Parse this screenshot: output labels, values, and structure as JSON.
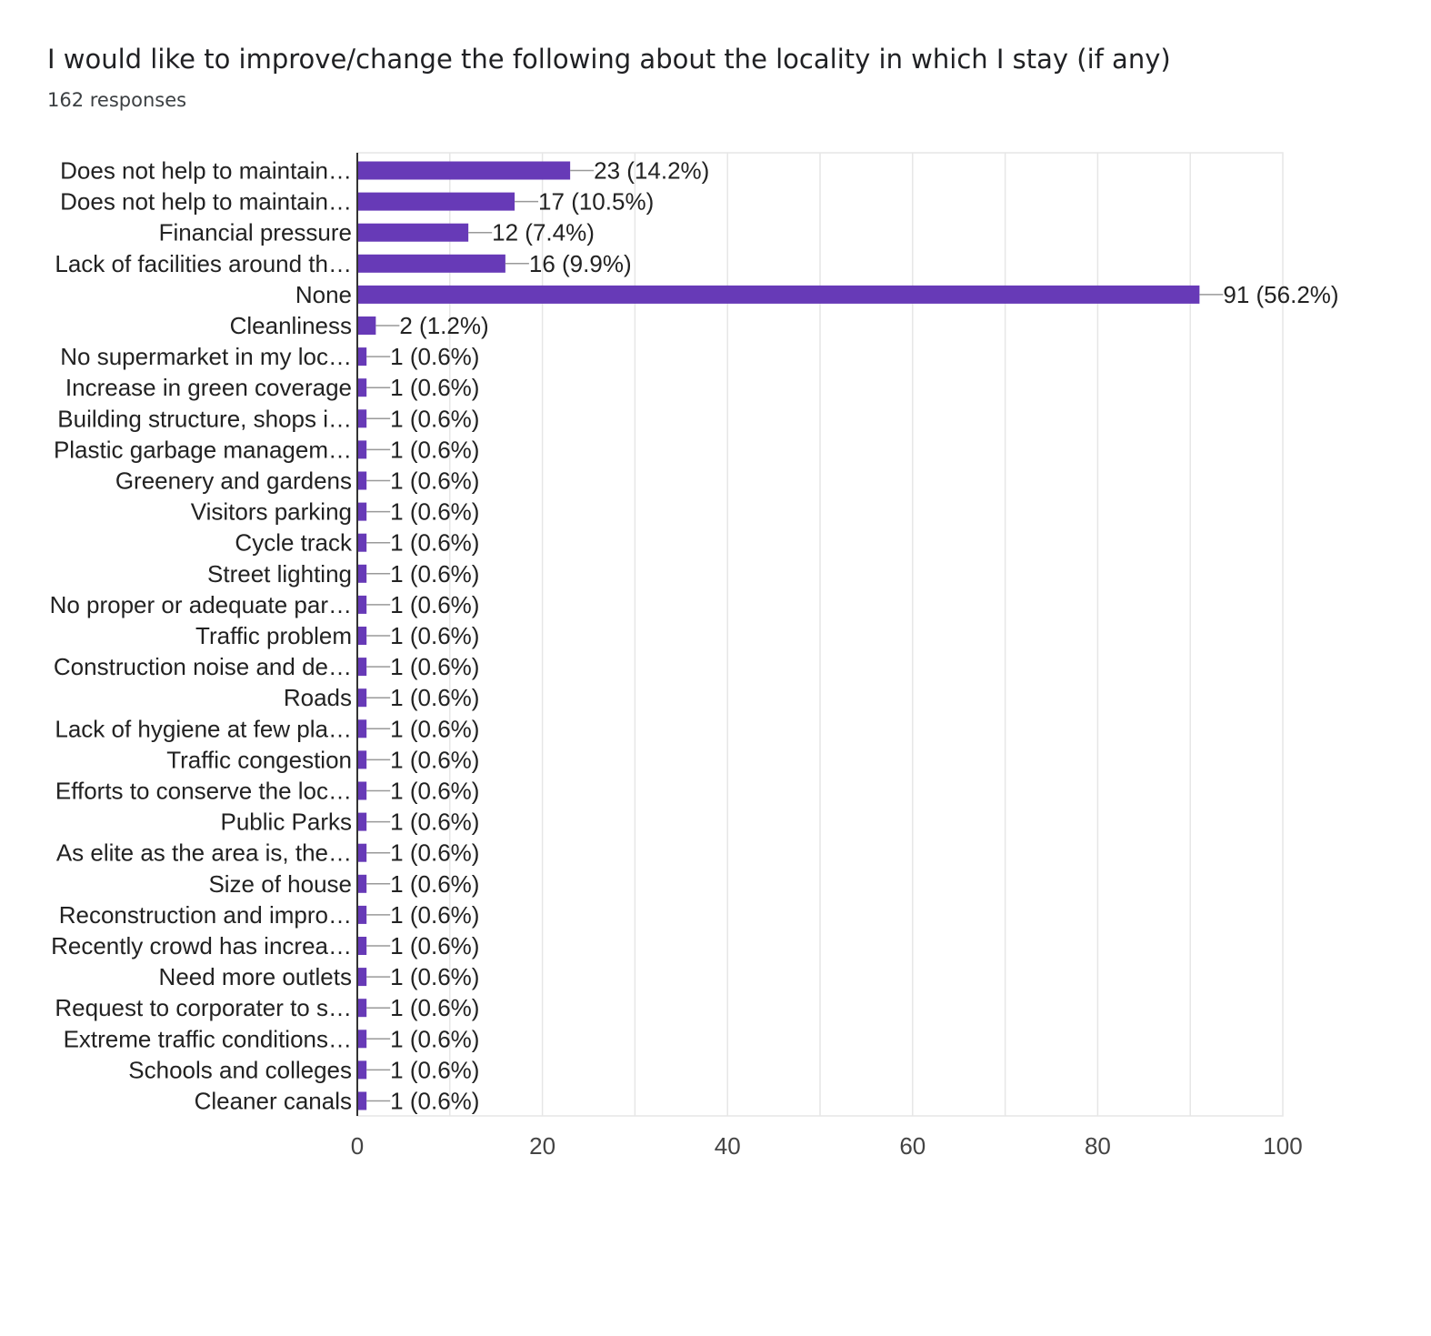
{
  "title": "I would like to improve/change the following about the locality in which I stay (if any)",
  "subtitle": "162 responses",
  "colors": {
    "bar": "#673ab7",
    "grid": "#e6e6e6",
    "axis": "#333333",
    "connector": "#999999"
  },
  "chart_data": {
    "type": "bar",
    "orientation": "horizontal",
    "xlim": [
      0,
      100
    ],
    "xticks": [
      0,
      20,
      40,
      60,
      80,
      100
    ],
    "grid": true,
    "categories": [
      "Does not help to maintain…",
      "Does not help to maintain…",
      "Financial pressure",
      "Lack of facilities around th…",
      "None",
      "Cleanliness",
      "No supermarket in my loc…",
      "Increase in green coverage",
      "Building structure, shops i…",
      "Plastic garbage managem…",
      "Greenery and gardens",
      "Visitors parking",
      "Cycle track",
      "Street lighting",
      "No proper or adequate par…",
      "Traffic problem",
      "Construction noise and de…",
      "Roads",
      "Lack of hygiene at few pla…",
      "Traffic congestion",
      "Efforts to conserve the loc…",
      "Public Parks",
      "As elite as the area is, the…",
      "Size of house",
      "Reconstruction and impro…",
      "Recently crowd has increa…",
      "Need more outlets",
      "Request to corporater to s…",
      "Extreme traffic conditions…",
      "Schools and colleges",
      "Cleaner canals"
    ],
    "values": [
      23,
      17,
      12,
      16,
      91,
      2,
      1,
      1,
      1,
      1,
      1,
      1,
      1,
      1,
      1,
      1,
      1,
      1,
      1,
      1,
      1,
      1,
      1,
      1,
      1,
      1,
      1,
      1,
      1,
      1,
      1
    ],
    "value_labels": [
      "23 (14.2%)",
      "17 (10.5%)",
      "12 (7.4%)",
      "16 (9.9%)",
      "91 (56.2%)",
      "2 (1.2%)",
      "1 (0.6%)",
      "1 (0.6%)",
      "1 (0.6%)",
      "1 (0.6%)",
      "1 (0.6%)",
      "1 (0.6%)",
      "1 (0.6%)",
      "1 (0.6%)",
      "1 (0.6%)",
      "1 (0.6%)",
      "1 (0.6%)",
      "1 (0.6%)",
      "1 (0.6%)",
      "1 (0.6%)",
      "1 (0.6%)",
      "1 (0.6%)",
      "1 (0.6%)",
      "1 (0.6%)",
      "1 (0.6%)",
      "1 (0.6%)",
      "1 (0.6%)",
      "1 (0.6%)",
      "1 (0.6%)",
      "1 (0.6%)",
      "1 (0.6%)"
    ]
  }
}
